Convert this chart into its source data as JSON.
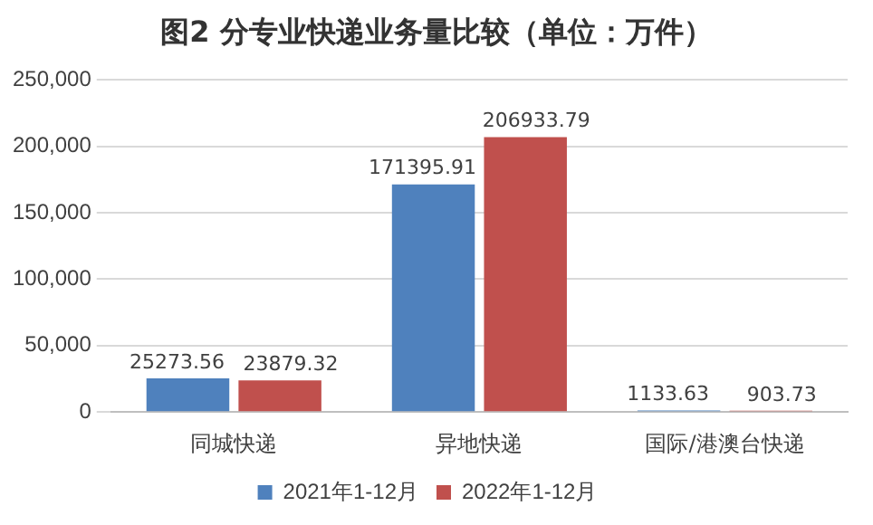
{
  "chart_data": {
    "type": "bar",
    "title": "图2 分专业快递业务量比较（单位：万件）",
    "categories": [
      "同城快递",
      "异地快递",
      "国际/港澳台快递"
    ],
    "series": [
      {
        "name": "2021年1-12月",
        "color": "#4f81bd",
        "values": [
          25273.56,
          171395.91,
          1133.63
        ]
      },
      {
        "name": "2022年1-12月",
        "color": "#c0504d",
        "values": [
          23879.32,
          206933.79,
          903.73
        ]
      }
    ],
    "ylim": [
      0,
      250000
    ],
    "yticks": [
      {
        "value": 0,
        "label": "0"
      },
      {
        "value": 50000,
        "label": "50,000"
      },
      {
        "value": 100000,
        "label": "100,000"
      },
      {
        "value": 150000,
        "label": "150,000"
      },
      {
        "value": 200000,
        "label": "200,000"
      },
      {
        "value": 250000,
        "label": "250,000"
      }
    ],
    "grid": "y",
    "legend": "bottom",
    "data_labels": true
  }
}
